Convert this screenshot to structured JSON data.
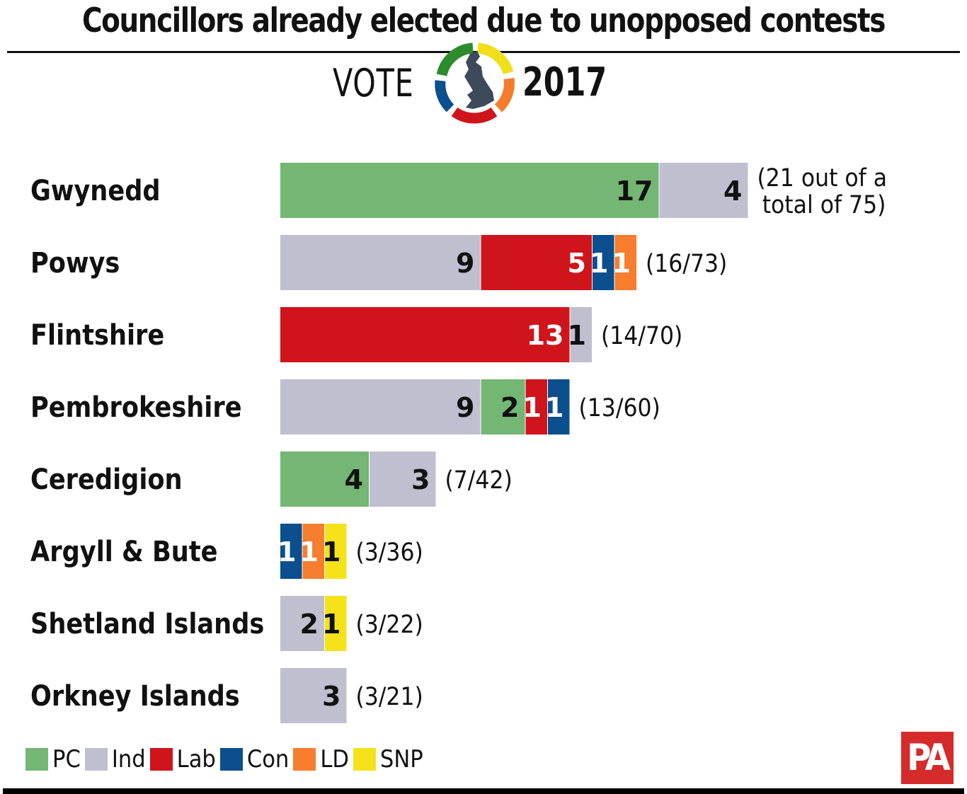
{
  "header": {
    "title": "Councillors already elected due to unopposed contests",
    "vote_word": "VOTE",
    "vote_year": "2017"
  },
  "parties": [
    {
      "name": "PC",
      "color": "#74b673",
      "text_color": "#111111"
    },
    {
      "name": "Ind",
      "color": "#c0bfcf",
      "text_color": "#111111"
    },
    {
      "name": "Lab",
      "color": "#d0141b",
      "text_color": "#ffffff"
    },
    {
      "name": "Con",
      "color": "#0b4f8e",
      "text_color": "#ffffff"
    },
    {
      "name": "LD",
      "color": "#f77d2f",
      "text_color": "#ffffff"
    },
    {
      "name": "SNP",
      "color": "#f5e21a",
      "text_color": "#111111"
    }
  ],
  "chart_data": {
    "type": "bar",
    "orientation": "horizontal",
    "stacked": true,
    "title": "Councillors already elected due to unopposed contests",
    "categories": [
      "Gwynedd",
      "Powys",
      "Flintshire",
      "Pembrokeshire",
      "Ceredigion",
      "Argyll & Bute",
      "Shetland Islands",
      "Orkney Islands"
    ],
    "rows": [
      {
        "category": "Gwynedd",
        "segments": [
          {
            "party": "PC",
            "value": 17
          },
          {
            "party": "Ind",
            "value": 4
          }
        ],
        "annotation": [
          "(21 out of a",
          "total of 75)"
        ]
      },
      {
        "category": "Powys",
        "segments": [
          {
            "party": "Ind",
            "value": 9
          },
          {
            "party": "Lab",
            "value": 5
          },
          {
            "party": "Con",
            "value": 1
          },
          {
            "party": "LD",
            "value": 1
          }
        ],
        "annotation": [
          "(16/73)"
        ]
      },
      {
        "category": "Flintshire",
        "segments": [
          {
            "party": "Lab",
            "value": 13
          },
          {
            "party": "Ind",
            "value": 1
          }
        ],
        "annotation": [
          "(14/70)"
        ]
      },
      {
        "category": "Pembrokeshire",
        "segments": [
          {
            "party": "Ind",
            "value": 9
          },
          {
            "party": "PC",
            "value": 2
          },
          {
            "party": "Lab",
            "value": 1
          },
          {
            "party": "Con",
            "value": 1
          }
        ],
        "annotation": [
          "(13/60)"
        ]
      },
      {
        "category": "Ceredigion",
        "segments": [
          {
            "party": "PC",
            "value": 4
          },
          {
            "party": "Ind",
            "value": 3
          }
        ],
        "annotation": [
          "(7/42)"
        ]
      },
      {
        "category": "Argyll & Bute",
        "segments": [
          {
            "party": "Con",
            "value": 1
          },
          {
            "party": "LD",
            "value": 1
          },
          {
            "party": "SNP",
            "value": 1
          }
        ],
        "annotation": [
          "(3/36)"
        ]
      },
      {
        "category": "Shetland Islands",
        "segments": [
          {
            "party": "Ind",
            "value": 2
          },
          {
            "party": "SNP",
            "value": 1
          }
        ],
        "annotation": [
          "(3/22)"
        ]
      },
      {
        "category": "Orkney Islands",
        "segments": [
          {
            "party": "Ind",
            "value": 3
          }
        ],
        "annotation": [
          "(3/21)"
        ]
      }
    ],
    "legend": [
      "PC",
      "Ind",
      "Lab",
      "Con",
      "LD",
      "SNP"
    ],
    "legend_position": "bottom-left",
    "grid": false
  },
  "footer": {
    "logo_text": "PA"
  }
}
